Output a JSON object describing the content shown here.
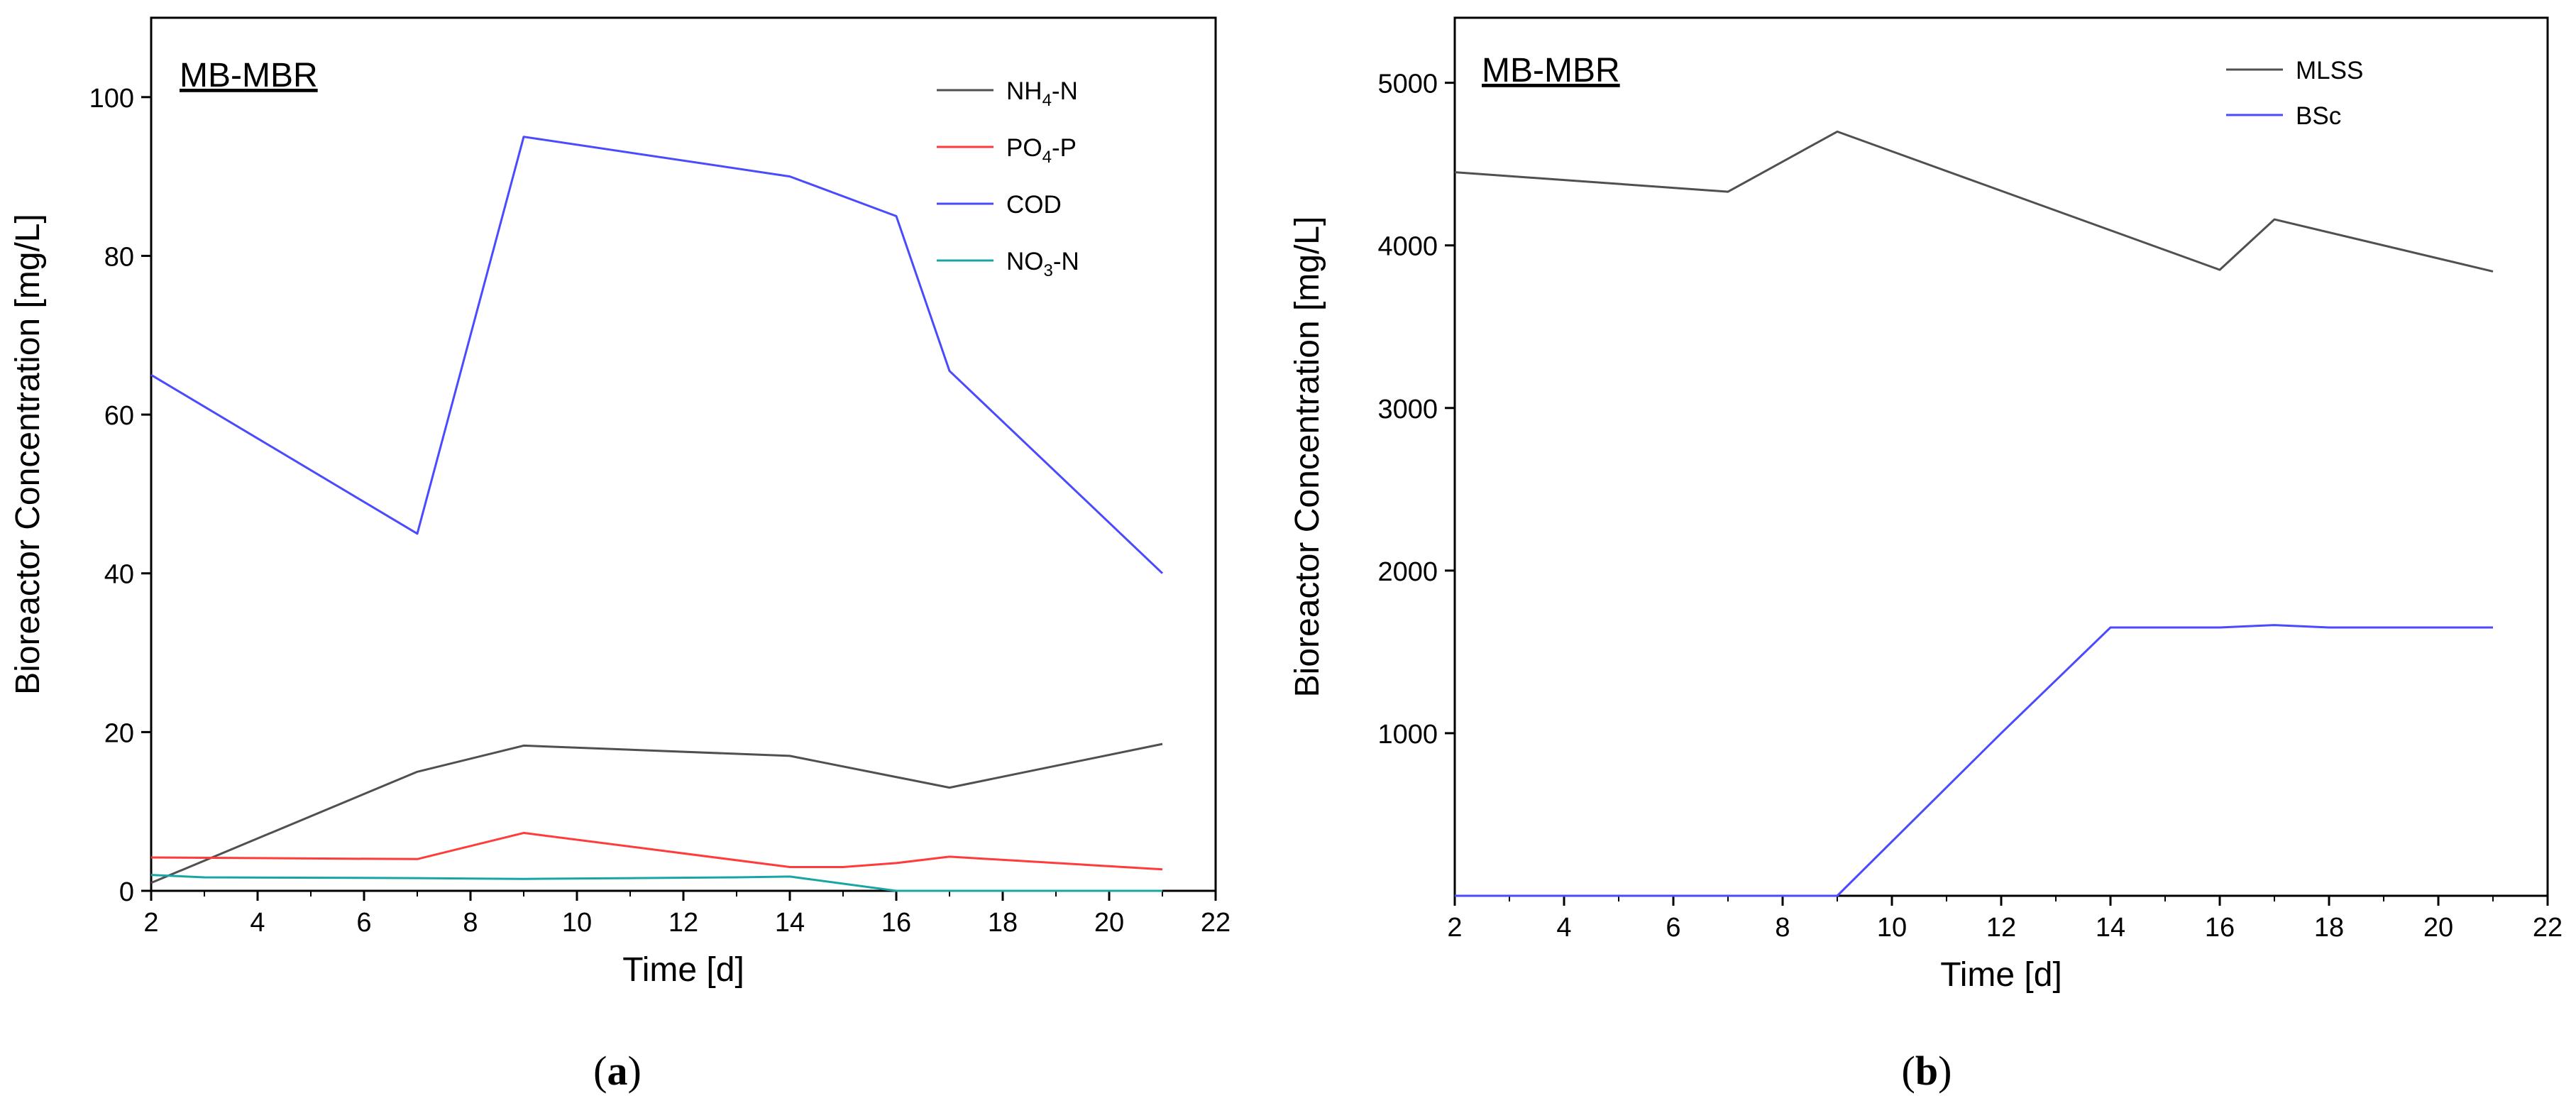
{
  "chart_data": [
    {
      "type": "line",
      "panel_label": "(a)",
      "panel_letter": "a",
      "inset_title": "MB-MBR",
      "xlabel": "Time [d]",
      "ylabel": "Bioreactor Concentration [mg/L]",
      "xlim": [
        2,
        22
      ],
      "ylim": [
        0,
        110
      ],
      "xticks": [
        2,
        4,
        6,
        8,
        10,
        12,
        14,
        16,
        18,
        20,
        22
      ],
      "yticks": [
        0,
        20,
        40,
        60,
        80,
        100
      ],
      "legend_position": "top-right",
      "series": [
        {
          "name": "NH4-N",
          "label_main": "NH",
          "label_sub": "4",
          "label_tail": "-N",
          "color": "#505050",
          "x": [
            2,
            7,
            9,
            14,
            17,
            21
          ],
          "y": [
            1,
            15,
            18.3,
            17,
            13,
            18.5
          ]
        },
        {
          "name": "PO4-P",
          "label_main": "PO",
          "label_sub": "4",
          "label_tail": "-P",
          "color": "#ff3b3b",
          "x": [
            2,
            7,
            9,
            14,
            15,
            16,
            17,
            21
          ],
          "y": [
            4.2,
            4,
            7.3,
            3,
            3,
            3.5,
            4.3,
            2.7
          ]
        },
        {
          "name": "COD",
          "label_main": "COD",
          "label_sub": "",
          "label_tail": "",
          "color": "#4a4aff",
          "x": [
            2,
            7,
            9,
            14,
            16,
            17,
            21
          ],
          "y": [
            65,
            45,
            95,
            90,
            85,
            65.5,
            40
          ]
        },
        {
          "name": "NO3-N",
          "label_main": "NO",
          "label_sub": "3",
          "label_tail": "-N",
          "color": "#1aa5a5",
          "x": [
            2,
            3,
            7,
            9,
            13,
            14,
            16,
            17,
            21
          ],
          "y": [
            2,
            1.7,
            1.6,
            1.5,
            1.7,
            1.8,
            0,
            0,
            0
          ]
        }
      ]
    },
    {
      "type": "line",
      "panel_label": "(b)",
      "panel_letter": "b",
      "inset_title": "MB-MBR",
      "xlabel": "Time [d]",
      "ylabel": "Bioreactor Concentration [mg/L]",
      "xlim": [
        2,
        22
      ],
      "ylim": [
        0,
        5400
      ],
      "xticks": [
        2,
        4,
        6,
        8,
        10,
        12,
        14,
        16,
        18,
        20,
        22
      ],
      "yticks": [
        1000,
        2000,
        3000,
        4000,
        5000
      ],
      "legend_position": "top-right",
      "series": [
        {
          "name": "MLSS",
          "label_main": "MLSS",
          "label_sub": "",
          "label_tail": "",
          "color": "#505050",
          "x": [
            2,
            7,
            9,
            16,
            17,
            21
          ],
          "y": [
            4450,
            4330,
            4700,
            3850,
            4160,
            3840
          ]
        },
        {
          "name": "BSc",
          "label_main": "BSc",
          "label_sub": "",
          "label_tail": "",
          "color": "#4a4aff",
          "x": [
            2,
            9,
            12,
            14,
            16,
            17,
            18,
            21
          ],
          "y": [
            0,
            0,
            1000,
            1650,
            1650,
            1665,
            1650,
            1650
          ]
        }
      ]
    }
  ]
}
